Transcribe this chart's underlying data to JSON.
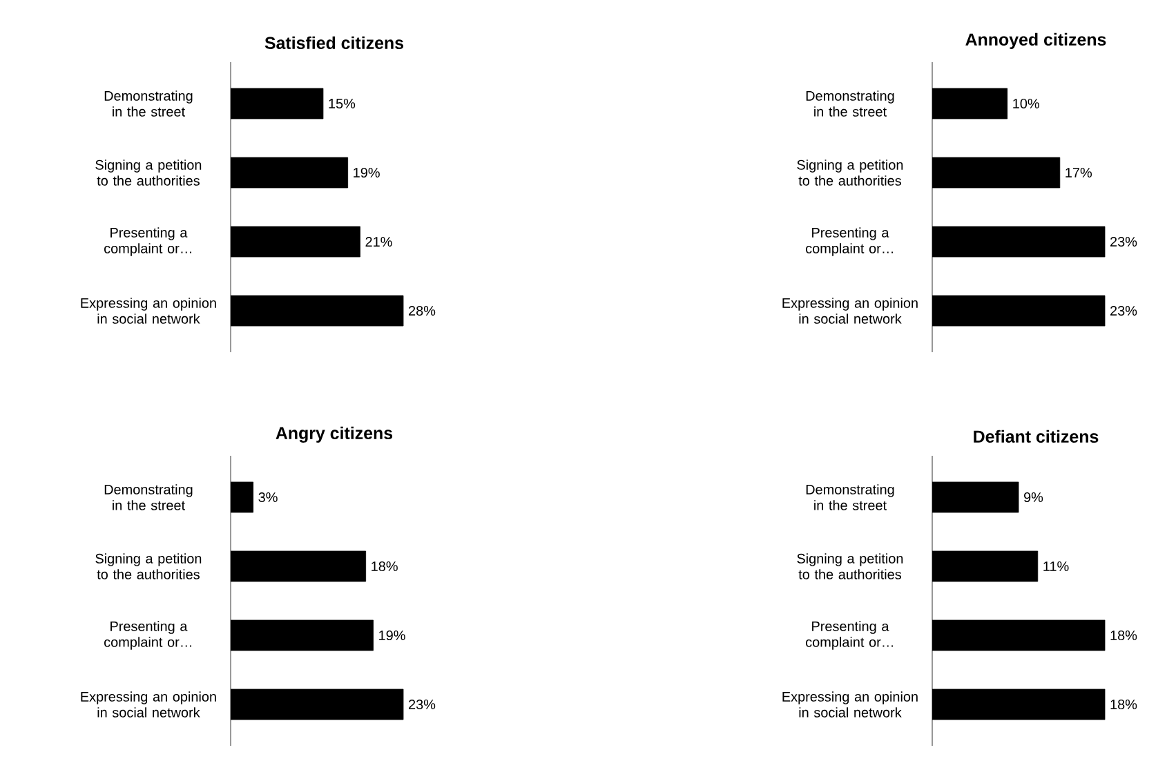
{
  "chart_data": [
    {
      "type": "bar",
      "orientation": "horizontal",
      "title": "Satisfied  citizens",
      "categories": [
        "Demonstrating in the street",
        "Signing a petition to the authorities",
        "Presenting a complaint or…",
        "Expressing an opinion in social network"
      ],
      "color": "#000000",
      "values": [
        15,
        19,
        21,
        28
      ],
      "value_labels": [
        "15%",
        "19%",
        "21%",
        "28%"
      ]
    },
    {
      "type": "bar",
      "orientation": "horizontal",
      "title": "Annoyed citizens",
      "categories": [
        "Demonstrating in the street",
        "Signing a petition to the authorities",
        "Presenting a complaint or…",
        "Expressing an opinion in social network"
      ],
      "color": "#000000",
      "values": [
        10,
        17,
        23,
        23
      ],
      "value_labels": [
        "10%",
        "17%",
        "23%",
        "23%"
      ]
    },
    {
      "type": "bar",
      "orientation": "horizontal",
      "title": "Angry citizens",
      "categories": [
        "Demonstrating in the street",
        "Signing a petition to the authorities",
        "Presenting a complaint or…",
        "Expressing an opinion in social network"
      ],
      "color": "#000000",
      "values": [
        3,
        18,
        19,
        23
      ],
      "value_labels": [
        "3%",
        "18%",
        "19%",
        "23%"
      ]
    },
    {
      "type": "bar",
      "orientation": "horizontal",
      "title": "Defiant citizens",
      "categories": [
        "Demonstrating in the street",
        "Signing a petition to the authorities",
        "Presenting a complaint or…",
        "Expressing an opinion in social network"
      ],
      "color": "#000000",
      "values": [
        9,
        11,
        18,
        18
      ],
      "value_labels": [
        "9%",
        "11%",
        "18%",
        "18%"
      ]
    }
  ]
}
